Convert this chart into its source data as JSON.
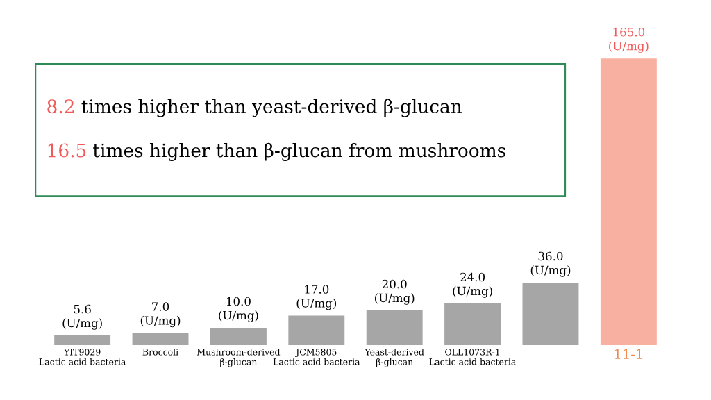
{
  "chart_data": {
    "type": "bar",
    "categories": [
      "YIT9029\nLactic acid bacteria",
      "Broccoli",
      "Mushroom-derived\nβ-glucan",
      "JCM5805\nLactic acid bacteria",
      "Yeast-derived\nβ-glucan",
      "OLL1073R-1\nLactic acid bacteria",
      null,
      "11-1"
    ],
    "values": [
      5.6,
      7.0,
      10.0,
      17.0,
      20.0,
      24.0,
      36.0,
      165.0
    ],
    "colors": [
      "#a6a6a6",
      "#a6a6a6",
      "#a6a6a6",
      "#a6a6a6",
      "#a6a6a6",
      "#a6a6a6",
      "#a6a6a6",
      "#f8b0a0"
    ],
    "value_labels": [
      "5.6\n(U/mg)",
      "7.0\n(U/mg)",
      "10.0\n(U/mg)",
      "17.0\n(U/mg)",
      "20.0\n(U/mg)",
      "24.0\n(U/mg)",
      "36.0\n(U/mg)",
      "165.0\n(U/mg)"
    ],
    "annotations": [
      "8.2 times higher than yeast-derived β-glucan",
      "16.5 times higher than β-glucan from mushrooms"
    ],
    "grid": false,
    "legend": false
  }
}
